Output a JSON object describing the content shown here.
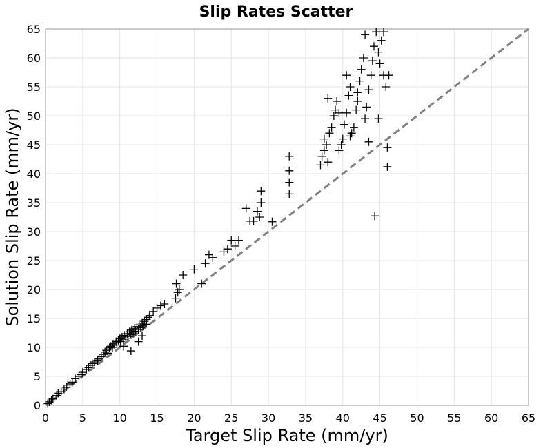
{
  "chart_data": {
    "type": "scatter",
    "title": "Slip Rates Scatter",
    "xlabel": "Target Slip Rate (mm/yr)",
    "ylabel": "Solution Slip Rate (mm/yr)",
    "xlim": [
      0,
      65
    ],
    "ylim": [
      0,
      65
    ],
    "xticks": [
      "0",
      "5",
      "10",
      "15",
      "20",
      "25",
      "30",
      "35",
      "40",
      "45",
      "50",
      "55",
      "60",
      "65"
    ],
    "yticks": [
      "0",
      "5",
      "10",
      "15",
      "20",
      "25",
      "30",
      "35",
      "40",
      "45",
      "50",
      "55",
      "60",
      "65"
    ],
    "grid": true,
    "marker": "plus",
    "marker_color": "#000000",
    "reference_line": {
      "style": "dashed",
      "color": "#808080",
      "from": [
        0,
        0
      ],
      "to": [
        65,
        65
      ]
    },
    "series": [
      {
        "points": [
          [
            0.3,
            0.3
          ],
          [
            0.5,
            0.6
          ],
          [
            0.8,
            0.9
          ],
          [
            1.0,
            1.1
          ],
          [
            1.5,
            1.7
          ],
          [
            1.7,
            2.1
          ],
          [
            2.1,
            2.4
          ],
          [
            2.5,
            2.8
          ],
          [
            2.8,
            3.1
          ],
          [
            3.0,
            3.5
          ],
          [
            3.3,
            3.7
          ],
          [
            3.6,
            4.0
          ],
          [
            4.0,
            4.6
          ],
          [
            4.5,
            5.0
          ],
          [
            4.8,
            5.3
          ],
          [
            5.0,
            5.7
          ],
          [
            5.5,
            6.2
          ],
          [
            5.8,
            6.5
          ],
          [
            6.0,
            6.9
          ],
          [
            6.3,
            7.2
          ],
          [
            6.6,
            7.5
          ],
          [
            7.0,
            7.7
          ],
          [
            7.2,
            8.0
          ],
          [
            7.5,
            8.4
          ],
          [
            7.8,
            8.8
          ],
          [
            8.0,
            9.2
          ],
          [
            8.2,
            9.5
          ],
          [
            8.4,
            9.0
          ],
          [
            8.6,
            9.9
          ],
          [
            8.8,
            10.2
          ],
          [
            9.0,
            10.0
          ],
          [
            9.1,
            10.6
          ],
          [
            9.3,
            10.4
          ],
          [
            9.5,
            11.0
          ],
          [
            9.6,
            10.8
          ],
          [
            9.8,
            11.2
          ],
          [
            10.0,
            11.5
          ],
          [
            10.1,
            11.0
          ],
          [
            10.3,
            11.8
          ],
          [
            10.5,
            11.3
          ],
          [
            10.6,
            12.1
          ],
          [
            10.8,
            11.6
          ],
          [
            11.0,
            12.4
          ],
          [
            11.1,
            11.9
          ],
          [
            11.3,
            12.7
          ],
          [
            11.5,
            12.2
          ],
          [
            11.6,
            13.0
          ],
          [
            11.8,
            12.5
          ],
          [
            12.0,
            13.3
          ],
          [
            12.1,
            12.8
          ],
          [
            12.3,
            13.6
          ],
          [
            12.5,
            13.1
          ],
          [
            12.6,
            13.9
          ],
          [
            12.8,
            13.4
          ],
          [
            13.0,
            14.2
          ],
          [
            13.1,
            13.7
          ],
          [
            13.3,
            14.5
          ],
          [
            13.5,
            14.0
          ],
          [
            13.6,
            14.8
          ],
          [
            13.8,
            15.2
          ],
          [
            14.0,
            15.5
          ],
          [
            11.5,
            9.4
          ],
          [
            12.5,
            11.0
          ],
          [
            13.0,
            12.0
          ],
          [
            10.5,
            10.2
          ],
          [
            14.5,
            16.2
          ],
          [
            15.0,
            16.8
          ],
          [
            15.5,
            17.2
          ],
          [
            16.0,
            17.5
          ],
          [
            17.5,
            18.5
          ],
          [
            17.8,
            19.5
          ],
          [
            18.0,
            20.0
          ],
          [
            17.6,
            21.0
          ],
          [
            18.5,
            22.5
          ],
          [
            20.0,
            23.5
          ],
          [
            21.0,
            21.0
          ],
          [
            21.5,
            24.5
          ],
          [
            22.0,
            26.0
          ],
          [
            22.5,
            25.5
          ],
          [
            24.0,
            26.5
          ],
          [
            24.5,
            27.0
          ],
          [
            25.0,
            28.5
          ],
          [
            25.5,
            27.5
          ],
          [
            26.0,
            28.5
          ],
          [
            27.0,
            34.0
          ],
          [
            27.5,
            31.8
          ],
          [
            28.0,
            31.8
          ],
          [
            28.5,
            33.5
          ],
          [
            29.0,
            35.0
          ],
          [
            29.0,
            37.0
          ],
          [
            28.8,
            32.5
          ],
          [
            30.5,
            31.7
          ],
          [
            32.8,
            36.5
          ],
          [
            32.8,
            38.5
          ],
          [
            32.8,
            40.5
          ],
          [
            32.8,
            43.0
          ],
          [
            37.0,
            41.5
          ],
          [
            37.2,
            43.0
          ],
          [
            37.5,
            44.0
          ],
          [
            37.5,
            46.0
          ],
          [
            37.8,
            45.0
          ],
          [
            38.0,
            42.0
          ],
          [
            38.2,
            47.0
          ],
          [
            38.5,
            48.0
          ],
          [
            38.8,
            50.0
          ],
          [
            39.0,
            51.0
          ],
          [
            39.2,
            52.5
          ],
          [
            39.5,
            44.0
          ],
          [
            39.8,
            45.0
          ],
          [
            40.0,
            46.0
          ],
          [
            40.2,
            48.5
          ],
          [
            40.5,
            50.5
          ],
          [
            40.8,
            53.5
          ],
          [
            41.0,
            55.0
          ],
          [
            41.2,
            47.0
          ],
          [
            41.5,
            48.0
          ],
          [
            41.8,
            51.0
          ],
          [
            42.0,
            54.0
          ],
          [
            42.3,
            56.0
          ],
          [
            42.5,
            58.0
          ],
          [
            42.8,
            60.0
          ],
          [
            43.0,
            49.5
          ],
          [
            43.2,
            51.5
          ],
          [
            43.5,
            54.5
          ],
          [
            43.8,
            57.0
          ],
          [
            44.0,
            59.5
          ],
          [
            44.2,
            62.0
          ],
          [
            44.5,
            64.5
          ],
          [
            44.8,
            61.0
          ],
          [
            45.0,
            59.0
          ],
          [
            45.2,
            63.0
          ],
          [
            45.5,
            57.0
          ],
          [
            45.8,
            55.0
          ],
          [
            46.0,
            44.5
          ],
          [
            46.0,
            41.2
          ],
          [
            44.3,
            32.7
          ],
          [
            43.0,
            64.0
          ],
          [
            45.5,
            64.5
          ],
          [
            46.2,
            57.0
          ],
          [
            44.8,
            49.5
          ],
          [
            43.5,
            45.5
          ],
          [
            41.0,
            46.5
          ],
          [
            39.5,
            50.5
          ],
          [
            38.0,
            53.0
          ],
          [
            42.0,
            52.5
          ],
          [
            40.5,
            57.0
          ]
        ]
      }
    ]
  }
}
